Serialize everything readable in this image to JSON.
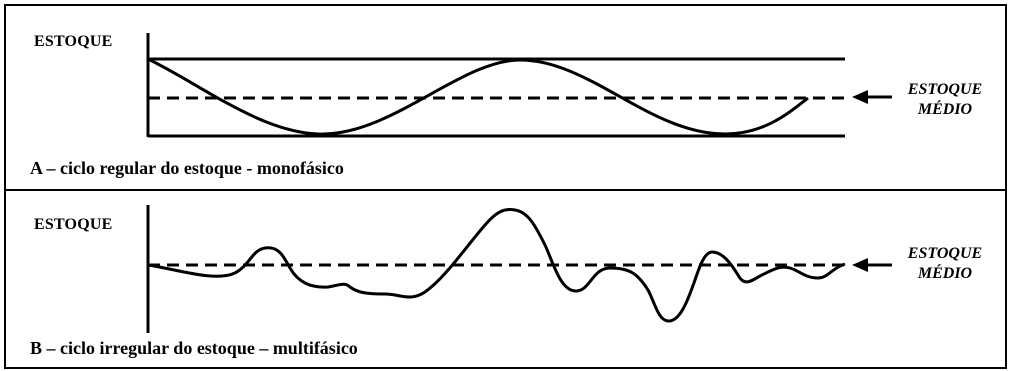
{
  "panels": [
    {
      "id": "A",
      "y_label": "ESTOQUE",
      "caption": "A – ciclo regular do estoque - monofásico",
      "avg_label_line1": "ESTOQUE",
      "avg_label_line2": "MÉDIO"
    },
    {
      "id": "B",
      "y_label": "ESTOQUE",
      "caption": "B – ciclo irregular do estoque – multifásico",
      "avg_label_line1": "ESTOQUE",
      "avg_label_line2": "MÉDIO"
    }
  ],
  "colors": {
    "line": "#000000",
    "background": "#ffffff"
  }
}
